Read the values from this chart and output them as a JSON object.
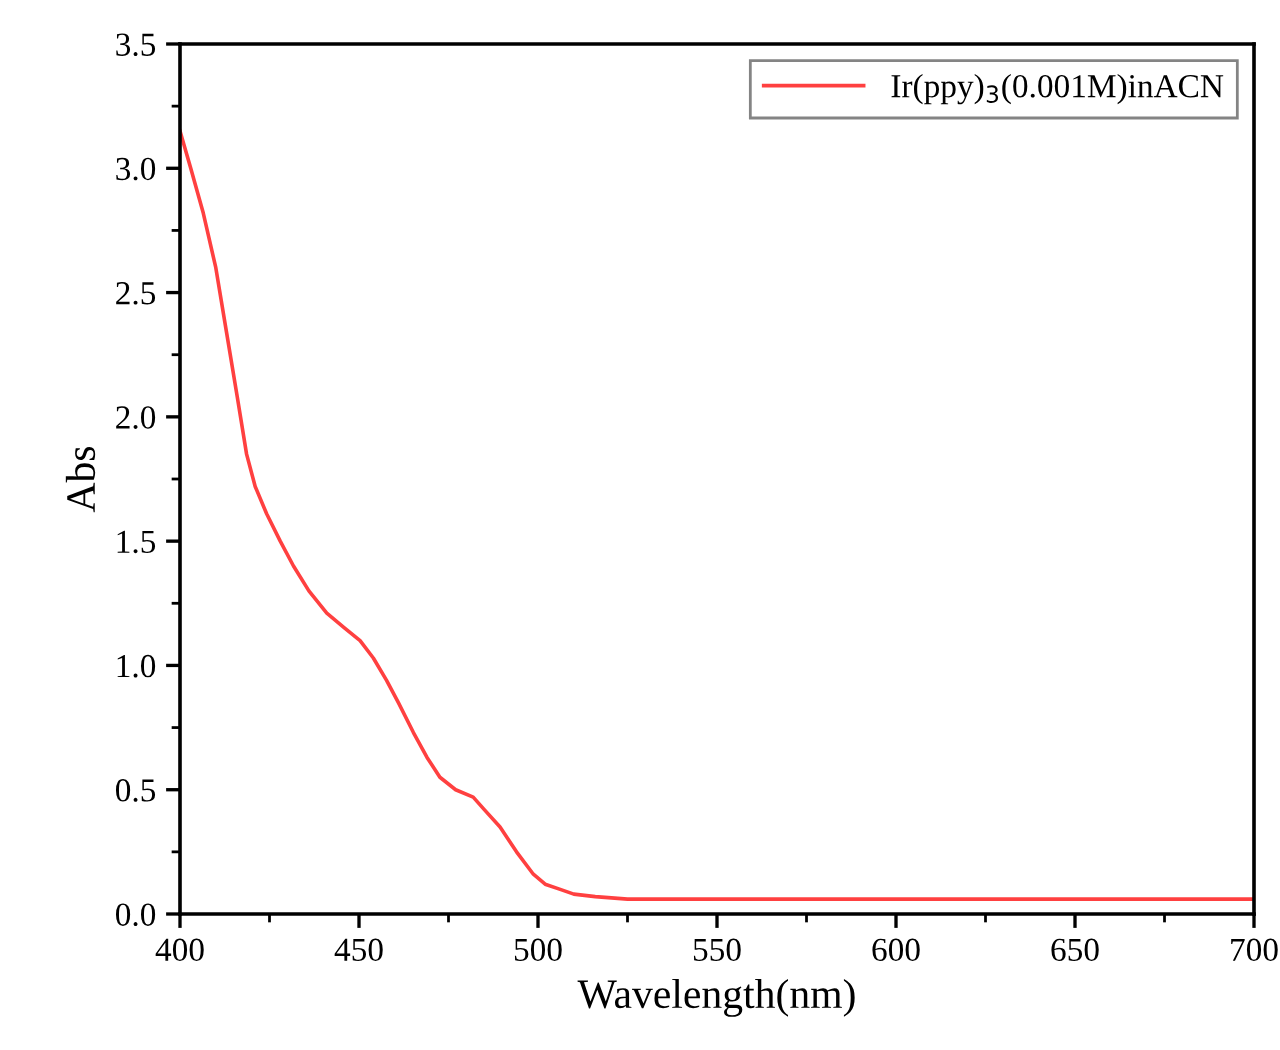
{
  "chart_data": {
    "type": "line",
    "xlabel": "Wavelength(nm)",
    "ylabel": "Abs",
    "x": [
      400,
      403,
      406.5,
      410,
      413,
      416,
      418.6,
      421,
      424.2,
      428,
      431.7,
      436,
      441,
      446,
      450.3,
      454,
      457.7,
      461,
      465.2,
      469,
      472.6,
      477,
      481.9,
      485,
      489.4,
      494,
      498.7,
      502,
      506,
      510,
      516,
      525,
      550,
      600,
      650,
      700
    ],
    "series": [
      {
        "name": "Ir(ppy)$_{3}$(0.001M)inACN",
        "color": "#ff4040",
        "values": [
          3.15,
          3.0,
          2.82,
          2.6,
          2.34,
          2.08,
          1.85,
          1.72,
          1.61,
          1.5,
          1.4,
          1.3,
          1.21,
          1.15,
          1.1,
          1.03,
          0.94,
          0.85,
          0.73,
          0.63,
          0.55,
          0.5,
          0.47,
          0.42,
          0.35,
          0.25,
          0.16,
          0.12,
          0.1,
          0.08,
          0.07,
          0.06,
          0.06,
          0.06,
          0.06,
          0.06
        ]
      }
    ],
    "xlim": [
      400,
      700
    ],
    "xticks": [
      400,
      450,
      500,
      550,
      600,
      650,
      700
    ],
    "ylim": [
      0,
      3.5
    ],
    "yticks": [
      {
        "value": 0,
        "label": "0.0"
      },
      0.5,
      {
        "value": 1,
        "label": "1.0"
      },
      1.5,
      {
        "value": 2,
        "label": "2.0"
      },
      2.5,
      {
        "value": 3,
        "label": "3.0"
      },
      3.5
    ],
    "legend": "top right",
    "grid": false,
    "marker": "none",
    "line_style": "solid"
  }
}
